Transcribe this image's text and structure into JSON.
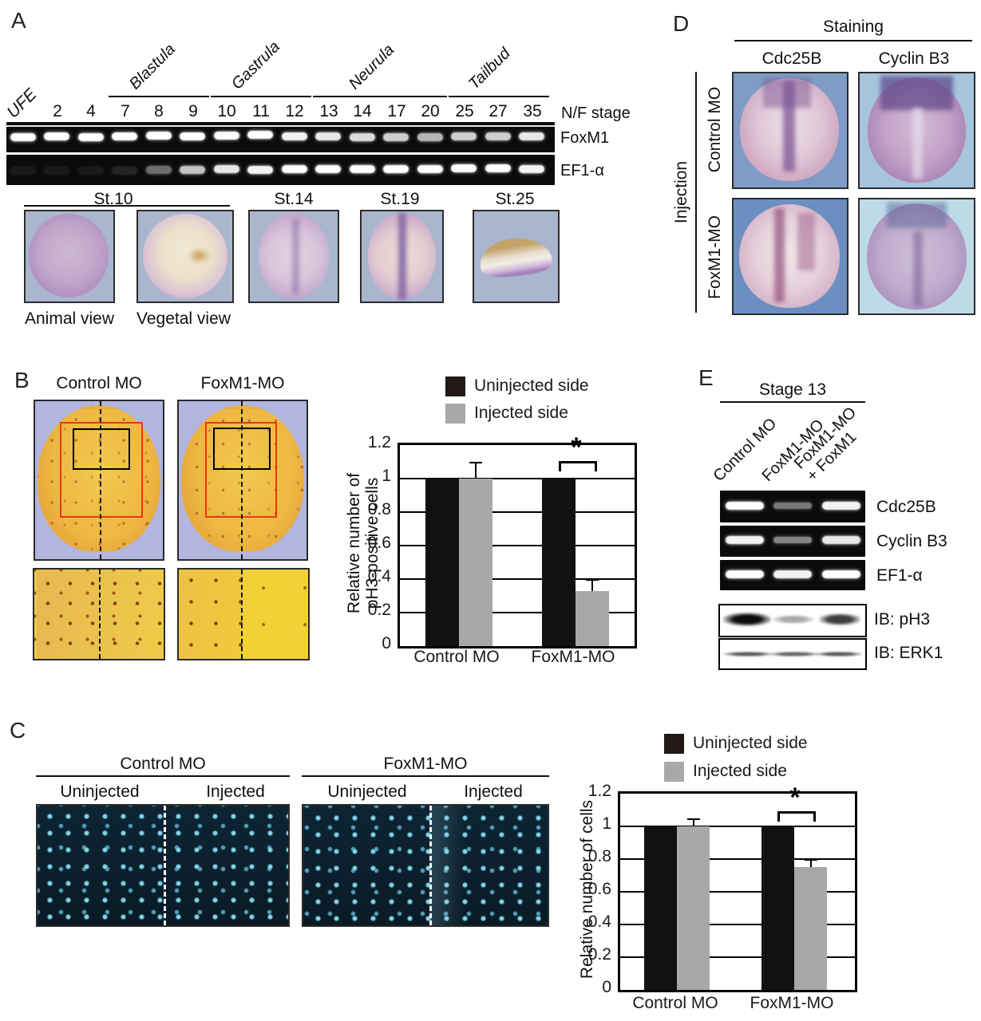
{
  "panelA": {
    "label": "A",
    "gel": {
      "axis_label": "N/F stage",
      "lane_labels": [
        "UFE",
        "2",
        "4",
        "7",
        "8",
        "9",
        "10",
        "11",
        "12",
        "13",
        "14",
        "17",
        "20",
        "25",
        "27",
        "35"
      ],
      "groups": [
        {
          "label": "Blastula",
          "lanes": [
            "7",
            "8",
            "9"
          ]
        },
        {
          "label": "Gastrula",
          "lanes": [
            "10",
            "11",
            "12"
          ]
        },
        {
          "label": "Neurula",
          "lanes": [
            "13",
            "14",
            "17",
            "20"
          ]
        },
        {
          "label": "Tailbud",
          "lanes": [
            "25",
            "27",
            "35"
          ]
        }
      ],
      "rows": [
        {
          "label": "FoxM1",
          "bands": [
            1,
            1,
            1,
            1,
            1,
            1,
            1,
            1,
            0.95,
            0.9,
            0.85,
            0.8,
            0.7,
            0.8,
            0.8,
            0.9
          ]
        },
        {
          "label": "EF1-α",
          "bands": [
            0.06,
            0.06,
            0.06,
            0.1,
            0.4,
            0.75,
            0.9,
            0.95,
            1,
            1,
            1,
            1,
            1,
            1,
            1,
            0.95
          ]
        }
      ]
    },
    "embryos": [
      {
        "label": "St.10",
        "views": [
          "Animal view",
          "Vegetal view"
        ]
      },
      {
        "label": "St.14"
      },
      {
        "label": "St.19"
      },
      {
        "label": "St.25"
      }
    ]
  },
  "panelB": {
    "label": "B",
    "column_labels": [
      "Control MO",
      "FoxM1-MO"
    ]
  },
  "panelC": {
    "label": "C",
    "groups": [
      {
        "label": "Control MO",
        "sides": [
          "Uninjected",
          "Injected"
        ]
      },
      {
        "label": "FoxM1-MO",
        "sides": [
          "Uninjected",
          "Injected"
        ]
      }
    ]
  },
  "panelD": {
    "label": "D",
    "title": "Staining",
    "column_labels": [
      "Cdc25B",
      "Cyclin B3"
    ],
    "side_label": "Injection",
    "row_labels": [
      "Control MO",
      "FoxM1-MO"
    ]
  },
  "panelE": {
    "label": "E",
    "title": "Stage 13",
    "lane_labels": [
      "Control MO",
      "FoxM1-MO",
      "FoxM1-MO\n+ FoxM1"
    ],
    "gel_rows": [
      {
        "label": "Cdc25B",
        "bands": [
          1,
          0.45,
          0.95
        ]
      },
      {
        "label": "Cyclin B3",
        "bands": [
          0.95,
          0.5,
          0.9
        ]
      },
      {
        "label": "EF1-α",
        "bands": [
          1,
          0.95,
          1
        ]
      }
    ],
    "blot_rows": [
      {
        "label": "IB: pH3",
        "bands": [
          1,
          0.35,
          0.8
        ]
      },
      {
        "label": "IB: ERK1",
        "bands": [
          0.7,
          0.65,
          0.7
        ]
      }
    ]
  },
  "chart_data": [
    {
      "type": "bar",
      "panel": "B",
      "categories": [
        "Control MO",
        "FoxM1-MO"
      ],
      "series": [
        {
          "name": "Uninjected side",
          "color": "#231815",
          "values": [
            1.0,
            1.0
          ]
        },
        {
          "name": "Injected side",
          "color": "#a8a8a8",
          "values": [
            1.0,
            0.33
          ]
        }
      ],
      "error_series": "Injected side",
      "error_values": [
        0.1,
        0.07
      ],
      "ylabel": "Relative number of pH3-positive cells",
      "ylabel_lines": [
        "Relative number of",
        "pH3-positive cells"
      ],
      "ytick_labels": [
        "1.2",
        "1",
        "0.8",
        "0.6",
        "0.4",
        "0.2",
        "0"
      ],
      "ylim": [
        0,
        1.2
      ],
      "grid": true,
      "legend_position": "top",
      "significance_label": "*",
      "significance_on": "FoxM1-MO"
    },
    {
      "type": "bar",
      "panel": "C",
      "categories": [
        "Control MO",
        "FoxM1-MO"
      ],
      "series": [
        {
          "name": "Uninjected side",
          "color": "#231815",
          "values": [
            1.0,
            1.0
          ]
        },
        {
          "name": "Injected side",
          "color": "#a8a8a8",
          "values": [
            1.0,
            0.75
          ]
        }
      ],
      "error_series": "Injected side",
      "error_values": [
        0.05,
        0.05
      ],
      "ylabel": "Relative number of cells",
      "ytick_labels": [
        "1.2",
        "1",
        "0.8",
        "0.6",
        "0.4",
        "0.2",
        "0"
      ],
      "ylim": [
        0,
        1.2
      ],
      "grid": true,
      "legend_position": "top",
      "significance_label": "*",
      "significance_on": "FoxM1-MO"
    }
  ]
}
